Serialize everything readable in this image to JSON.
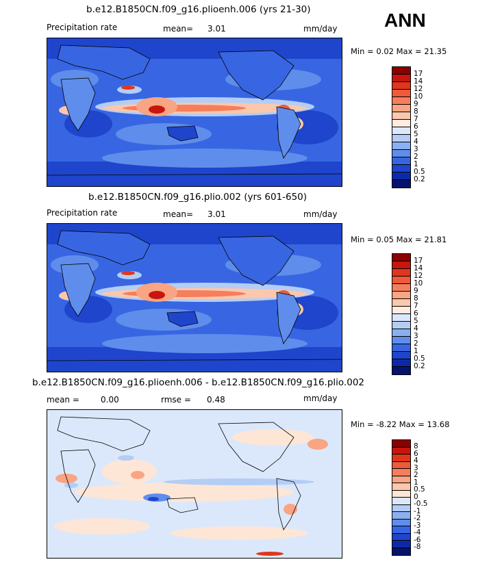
{
  "season": "ANN",
  "panels": [
    {
      "title": "b.e12.B1850CN.f09_g16.plioenh.006 (yrs 21-30)",
      "variable": "Precipitation rate",
      "stat1": "mean=",
      "stat1_value": "3.01",
      "stat2": "",
      "stat2_value": "",
      "units": "mm/day",
      "minmax": "Min =   0.02 Max =  21.35",
      "levels": [
        "17",
        "14",
        "12",
        "10",
        "9",
        "8",
        "7",
        "6",
        "5",
        "4",
        "3",
        "2",
        "1",
        "0.5",
        "0.2"
      ],
      "colors": [
        "#8b0000",
        "#c8160e",
        "#e0361c",
        "#ee5a3a",
        "#f57e5c",
        "#f9a483",
        "#fbc7ad",
        "#fdece0",
        "#dbe8fb",
        "#b4cdf5",
        "#8bb0ef",
        "#5f8deb",
        "#3866e2",
        "#1f45cc",
        "#0c2aa8",
        "#06136e"
      ]
    },
    {
      "title": "b.e12.B1850CN.f09_g16.plio.002 (yrs 601-650)",
      "variable": "Precipitation rate",
      "stat1": "mean=",
      "stat1_value": "3.01",
      "stat2": "",
      "stat2_value": "",
      "units": "mm/day",
      "minmax": "Min =   0.05 Max =  21.81",
      "levels": [
        "17",
        "14",
        "12",
        "10",
        "9",
        "8",
        "7",
        "6",
        "5",
        "4",
        "3",
        "2",
        "1",
        "0.5",
        "0.2"
      ],
      "colors": [
        "#8b0000",
        "#c8160e",
        "#e0361c",
        "#ee5a3a",
        "#f57e5c",
        "#f9a483",
        "#fbc7ad",
        "#fdece0",
        "#dbe8fb",
        "#b4cdf5",
        "#8bb0ef",
        "#5f8deb",
        "#3866e2",
        "#1f45cc",
        "#0c2aa8",
        "#06136e"
      ]
    },
    {
      "title": "b.e12.B1850CN.f09_g16.plioenh.006 - b.e12.B1850CN.f09_g16.plio.002",
      "variable": "",
      "stat1": "mean =",
      "stat1_value": "0.00",
      "stat2": "rmse =",
      "stat2_value": "0.48",
      "units": "mm/day",
      "minmax": "Min =  -8.22 Max =  13.68",
      "levels": [
        "8",
        "6",
        "4",
        "3",
        "2",
        "1",
        "0.5",
        "0",
        "-0.5",
        "-1",
        "-2",
        "-3",
        "-4",
        "-6",
        "-8"
      ],
      "colors": [
        "#8b0000",
        "#c8160e",
        "#e0361c",
        "#ee5a3a",
        "#f57e5c",
        "#f9a483",
        "#fbc7ad",
        "#fde6d6",
        "#dbe8fb",
        "#b4cdf5",
        "#8bb0ef",
        "#5f8deb",
        "#3866e2",
        "#1f45cc",
        "#0c2aa8",
        "#06136e"
      ]
    }
  ],
  "chart_data": [
    {
      "type": "heatmap",
      "title": "b.e12.B1850CN.f09_g16.plioenh.006 (yrs 21-30)",
      "variable": "Precipitation rate",
      "units": "mm/day",
      "mean": 3.01,
      "min": 0.02,
      "max": 21.35,
      "contour_levels": [
        0.2,
        0.5,
        1,
        2,
        3,
        4,
        5,
        6,
        7,
        8,
        9,
        10,
        12,
        14,
        17
      ]
    },
    {
      "type": "heatmap",
      "title": "b.e12.B1850CN.f09_g16.plio.002 (yrs 601-650)",
      "variable": "Precipitation rate",
      "units": "mm/day",
      "mean": 3.01,
      "min": 0.05,
      "max": 21.81,
      "contour_levels": [
        0.2,
        0.5,
        1,
        2,
        3,
        4,
        5,
        6,
        7,
        8,
        9,
        10,
        12,
        14,
        17
      ]
    },
    {
      "type": "heatmap",
      "title": "b.e12.B1850CN.f09_g16.plioenh.006 - b.e12.B1850CN.f09_g16.plio.002",
      "units": "mm/day",
      "mean": 0.0,
      "rmse": 0.48,
      "min": -8.22,
      "max": 13.68,
      "contour_levels": [
        -8,
        -6,
        -4,
        -3,
        -2,
        -1,
        -0.5,
        0,
        0.5,
        1,
        2,
        3,
        4,
        6,
        8
      ]
    }
  ]
}
